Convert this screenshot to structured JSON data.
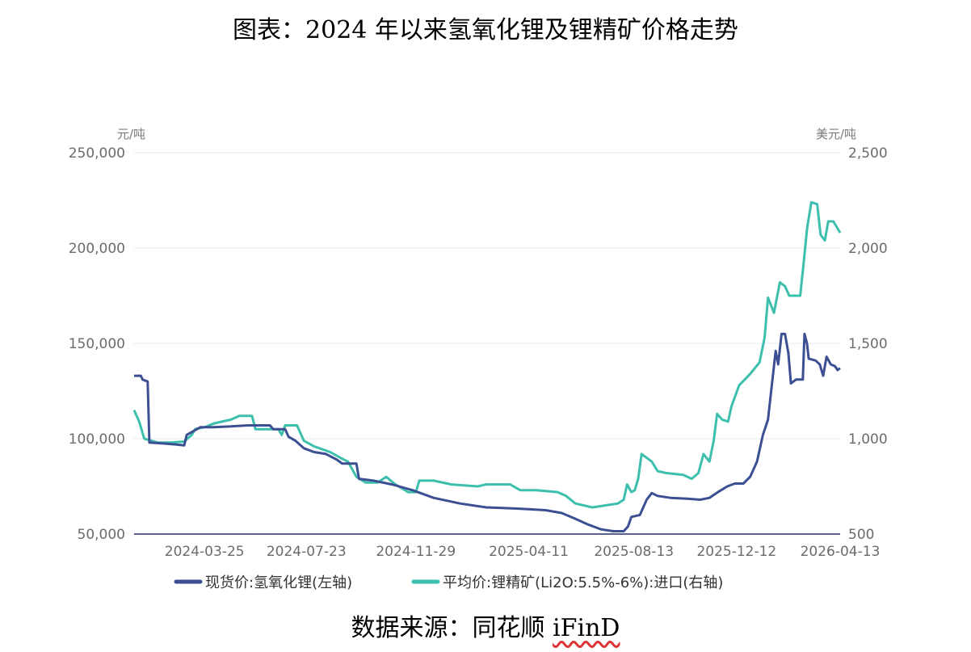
{
  "title": "图表：2024 年以来氢氧化锂及锂精矿价格走势",
  "source_prefix": "数据来源：同花顺 ",
  "source_brand": "iFinD",
  "chart_data": {
    "type": "line",
    "left_axis": {
      "unit": "元/吨",
      "range": [
        50000,
        250000
      ],
      "ticks": [
        "50,000",
        "100,000",
        "150,000",
        "200,000",
        "250,000"
      ],
      "tick_values": [
        50000,
        100000,
        150000,
        200000,
        250000
      ]
    },
    "right_axis": {
      "unit": "美元/吨",
      "range": [
        500,
        2500
      ],
      "ticks": [
        "500",
        "1,000",
        "1,500",
        "2,000",
        "2,500"
      ],
      "tick_values": [
        500,
        1000,
        1500,
        2000,
        2500
      ]
    },
    "x_ticks": [
      "2024-03-25",
      "2024-07-23",
      "2024-11-29",
      "2025-04-11",
      "2025-08-13",
      "2025-12-12",
      "2026-04-13"
    ],
    "grid": true,
    "legend_position": "bottom",
    "series": [
      {
        "name": "现货价:氢氧化锂(左轴)",
        "axis": "left",
        "color": "#3d4f93",
        "points": [
          [
            "2024-01-02",
            133000
          ],
          [
            "2024-01-10",
            133000
          ],
          [
            "2024-01-12",
            131000
          ],
          [
            "2024-01-18",
            130000
          ],
          [
            "2024-01-20",
            98000
          ],
          [
            "2024-02-05",
            97500
          ],
          [
            "2024-02-20",
            97000
          ],
          [
            "2024-03-01",
            96500
          ],
          [
            "2024-03-04",
            102000
          ],
          [
            "2024-03-12",
            104000
          ],
          [
            "2024-03-20",
            106000
          ],
          [
            "2024-04-05",
            106000
          ],
          [
            "2024-04-25",
            106500
          ],
          [
            "2024-05-15",
            107000
          ],
          [
            "2024-06-10",
            107000
          ],
          [
            "2024-06-14",
            105000
          ],
          [
            "2024-06-28",
            105000
          ],
          [
            "2024-07-02",
            101000
          ],
          [
            "2024-07-10",
            99000
          ],
          [
            "2024-07-20",
            95000
          ],
          [
            "2024-08-01",
            93000
          ],
          [
            "2024-08-15",
            92000
          ],
          [
            "2024-08-28",
            89000
          ],
          [
            "2024-09-03",
            87000
          ],
          [
            "2024-09-20",
            87000
          ],
          [
            "2024-09-23",
            79000
          ],
          [
            "2024-10-10",
            78000
          ],
          [
            "2024-11-01",
            76000
          ],
          [
            "2024-11-25",
            73000
          ],
          [
            "2024-12-20",
            69000
          ],
          [
            "2025-01-20",
            66000
          ],
          [
            "2025-02-20",
            64000
          ],
          [
            "2025-03-20",
            63500
          ],
          [
            "2025-04-11",
            63000
          ],
          [
            "2025-05-01",
            62500
          ],
          [
            "2025-05-20",
            61000
          ],
          [
            "2025-06-05",
            58000
          ],
          [
            "2025-06-20",
            55000
          ],
          [
            "2025-07-05",
            52500
          ],
          [
            "2025-07-20",
            51500
          ],
          [
            "2025-08-01",
            51500
          ],
          [
            "2025-08-06",
            54000
          ],
          [
            "2025-08-10",
            59000
          ],
          [
            "2025-08-20",
            60000
          ],
          [
            "2025-08-28",
            68000
          ],
          [
            "2025-09-03",
            71500
          ],
          [
            "2025-09-10",
            70000
          ],
          [
            "2025-09-25",
            69000
          ],
          [
            "2025-10-15",
            68500
          ],
          [
            "2025-10-30",
            68000
          ],
          [
            "2025-11-10",
            69000
          ],
          [
            "2025-11-20",
            72000
          ],
          [
            "2025-12-01",
            75000
          ],
          [
            "2025-12-10",
            76500
          ],
          [
            "2025-12-20",
            76500
          ],
          [
            "2025-12-28",
            80000
          ],
          [
            "2026-01-05",
            88000
          ],
          [
            "2026-01-12",
            102000
          ],
          [
            "2026-01-18",
            110000
          ],
          [
            "2026-01-22",
            126000
          ],
          [
            "2026-01-27",
            146000
          ],
          [
            "2026-01-30",
            139000
          ],
          [
            "2026-02-03",
            155000
          ],
          [
            "2026-02-07",
            155000
          ],
          [
            "2026-02-11",
            145000
          ],
          [
            "2026-02-14",
            129000
          ],
          [
            "2026-02-20",
            131000
          ],
          [
            "2026-02-28",
            131000
          ],
          [
            "2026-03-02",
            155000
          ],
          [
            "2026-03-05",
            150000
          ],
          [
            "2026-03-07",
            142000
          ],
          [
            "2026-03-15",
            141000
          ],
          [
            "2026-03-20",
            139000
          ],
          [
            "2026-03-24",
            133000
          ],
          [
            "2026-03-28",
            143000
          ],
          [
            "2026-04-02",
            139000
          ],
          [
            "2026-04-07",
            138000
          ],
          [
            "2026-04-10",
            136000
          ],
          [
            "2026-04-13",
            137000
          ]
        ]
      },
      {
        "name": "平均价:锂精矿(Li2O:5.5%-6%):进口(右轴)",
        "axis": "right",
        "color": "#3dbfad",
        "points": [
          [
            "2024-01-02",
            1150
          ],
          [
            "2024-01-08",
            1090
          ],
          [
            "2024-01-14",
            1000
          ],
          [
            "2024-01-30",
            980
          ],
          [
            "2024-02-15",
            980
          ],
          [
            "2024-03-01",
            985
          ],
          [
            "2024-03-10",
            1020
          ],
          [
            "2024-03-14",
            1050
          ],
          [
            "2024-03-25",
            1060
          ],
          [
            "2024-04-05",
            1080
          ],
          [
            "2024-04-25",
            1100
          ],
          [
            "2024-05-05",
            1120
          ],
          [
            "2024-05-20",
            1120
          ],
          [
            "2024-05-24",
            1050
          ],
          [
            "2024-06-20",
            1050
          ],
          [
            "2024-06-24",
            1020
          ],
          [
            "2024-06-28",
            1070
          ],
          [
            "2024-07-12",
            1070
          ],
          [
            "2024-07-20",
            990
          ],
          [
            "2024-08-01",
            960
          ],
          [
            "2024-08-20",
            930
          ],
          [
            "2024-09-01",
            900
          ],
          [
            "2024-09-10",
            880
          ],
          [
            "2024-09-20",
            800
          ],
          [
            "2024-10-01",
            770
          ],
          [
            "2024-10-15",
            770
          ],
          [
            "2024-10-25",
            800
          ],
          [
            "2024-11-05",
            760
          ],
          [
            "2024-11-20",
            720
          ],
          [
            "2024-11-29",
            720
          ],
          [
            "2024-12-03",
            780
          ],
          [
            "2024-12-20",
            780
          ],
          [
            "2025-01-10",
            760
          ],
          [
            "2025-02-10",
            750
          ],
          [
            "2025-02-20",
            760
          ],
          [
            "2025-03-20",
            760
          ],
          [
            "2025-04-01",
            730
          ],
          [
            "2025-04-20",
            730
          ],
          [
            "2025-05-15",
            720
          ],
          [
            "2025-05-25",
            700
          ],
          [
            "2025-06-05",
            660
          ],
          [
            "2025-06-25",
            640
          ],
          [
            "2025-07-10",
            650
          ],
          [
            "2025-07-25",
            660
          ],
          [
            "2025-08-01",
            680
          ],
          [
            "2025-08-05",
            760
          ],
          [
            "2025-08-10",
            720
          ],
          [
            "2025-08-14",
            730
          ],
          [
            "2025-08-18",
            790
          ],
          [
            "2025-08-22",
            920
          ],
          [
            "2025-09-03",
            880
          ],
          [
            "2025-09-10",
            830
          ],
          [
            "2025-09-20",
            820
          ],
          [
            "2025-10-10",
            810
          ],
          [
            "2025-10-20",
            790
          ],
          [
            "2025-10-28",
            820
          ],
          [
            "2025-11-03",
            920
          ],
          [
            "2025-11-10",
            880
          ],
          [
            "2025-11-15",
            990
          ],
          [
            "2025-11-19",
            1130
          ],
          [
            "2025-11-25",
            1100
          ],
          [
            "2025-12-02",
            1090
          ],
          [
            "2025-12-06",
            1170
          ],
          [
            "2025-12-15",
            1280
          ],
          [
            "2025-12-28",
            1340
          ],
          [
            "2026-01-08",
            1400
          ],
          [
            "2026-01-14",
            1530
          ],
          [
            "2026-01-18",
            1740
          ],
          [
            "2026-01-25",
            1660
          ],
          [
            "2026-02-01",
            1820
          ],
          [
            "2026-02-07",
            1800
          ],
          [
            "2026-02-12",
            1750
          ],
          [
            "2026-02-25",
            1750
          ],
          [
            "2026-03-01",
            1920
          ],
          [
            "2026-03-05",
            2100
          ],
          [
            "2026-03-10",
            2240
          ],
          [
            "2026-03-17",
            2230
          ],
          [
            "2026-03-21",
            2070
          ],
          [
            "2026-03-26",
            2040
          ],
          [
            "2026-03-30",
            2140
          ],
          [
            "2026-04-05",
            2140
          ],
          [
            "2026-04-09",
            2110
          ],
          [
            "2026-04-13",
            2080
          ]
        ]
      }
    ]
  }
}
